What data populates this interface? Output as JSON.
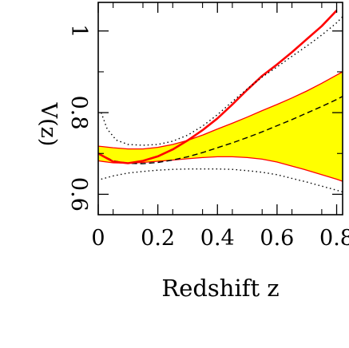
{
  "chart_data": {
    "type": "line",
    "title": "",
    "xlabel": "Redshift z",
    "ylabel": "V(z)",
    "xlim": [
      0,
      0.82
    ],
    "ylim": [
      0.55,
      1.07
    ],
    "xticks": [
      0,
      0.2,
      0.4,
      0.6,
      0.8
    ],
    "xtick_labels": [
      "0",
      "0.2",
      "0.4",
      "0.6",
      "0.8"
    ],
    "yticks": [
      0.6,
      0.8,
      1
    ],
    "ytick_labels": [
      "0.6",
      "0.8",
      "1"
    ],
    "grid": false,
    "legend": "none",
    "colors": {
      "band_fill": "#ffff00",
      "band_edge": "#ff0000",
      "red_curve": "#ff0000",
      "dashed": "#000000",
      "dotted": "#000000",
      "frame": "#000000"
    },
    "series": [
      {
        "style": "band",
        "x": [
          0,
          0.05,
          0.1,
          0.15,
          0.2,
          0.25,
          0.3,
          0.35,
          0.4,
          0.45,
          0.5,
          0.55,
          0.6,
          0.65,
          0.7,
          0.75,
          0.8,
          0.82
        ],
        "upper": [
          0.718,
          0.714,
          0.711,
          0.711,
          0.715,
          0.722,
          0.732,
          0.745,
          0.76,
          0.774,
          0.789,
          0.805,
          0.82,
          0.836,
          0.853,
          0.872,
          0.892,
          0.9
        ],
        "lower": [
          0.682,
          0.677,
          0.676,
          0.678,
          0.681,
          0.684,
          0.687,
          0.69,
          0.692,
          0.692,
          0.69,
          0.686,
          0.679,
          0.669,
          0.659,
          0.648,
          0.637,
          0.632
        ]
      },
      {
        "style": "dashed",
        "x": [
          0,
          0.05,
          0.1,
          0.15,
          0.2,
          0.25,
          0.3,
          0.35,
          0.4,
          0.45,
          0.5,
          0.55,
          0.6,
          0.65,
          0.7,
          0.75,
          0.8,
          0.82
        ],
        "y": [
          0.7,
          0.682,
          0.676,
          0.675,
          0.678,
          0.684,
          0.692,
          0.702,
          0.714,
          0.726,
          0.739,
          0.753,
          0.768,
          0.783,
          0.799,
          0.815,
          0.832,
          0.84
        ]
      },
      {
        "style": "solid-red",
        "x": [
          0,
          0.05,
          0.1,
          0.15,
          0.2,
          0.25,
          0.3,
          0.35,
          0.4,
          0.45,
          0.5,
          0.55,
          0.6,
          0.65,
          0.7,
          0.75,
          0.8
        ],
        "y": [
          0.7,
          0.68,
          0.676,
          0.682,
          0.693,
          0.71,
          0.732,
          0.757,
          0.786,
          0.82,
          0.856,
          0.89,
          0.918,
          0.948,
          0.98,
          1.012,
          1.05
        ]
      },
      {
        "style": "dotted-upper",
        "x": [
          0.01,
          0.03,
          0.06,
          0.1,
          0.15,
          0.2,
          0.25,
          0.3,
          0.35,
          0.4,
          0.45,
          0.5,
          0.55,
          0.6,
          0.65,
          0.7,
          0.75,
          0.8,
          0.82
        ],
        "y": [
          0.8,
          0.76,
          0.733,
          0.722,
          0.72,
          0.722,
          0.73,
          0.745,
          0.767,
          0.795,
          0.827,
          0.858,
          0.887,
          0.912,
          0.938,
          0.963,
          0.99,
          1.02,
          1.035
        ]
      },
      {
        "style": "dotted-lower",
        "x": [
          0.01,
          0.05,
          0.1,
          0.15,
          0.2,
          0.25,
          0.3,
          0.35,
          0.4,
          0.45,
          0.5,
          0.55,
          0.6,
          0.65,
          0.7,
          0.75,
          0.8,
          0.82
        ],
        "y": [
          0.637,
          0.645,
          0.652,
          0.656,
          0.659,
          0.661,
          0.662,
          0.662,
          0.662,
          0.661,
          0.658,
          0.654,
          0.648,
          0.639,
          0.63,
          0.62,
          0.61,
          0.606
        ]
      }
    ]
  }
}
